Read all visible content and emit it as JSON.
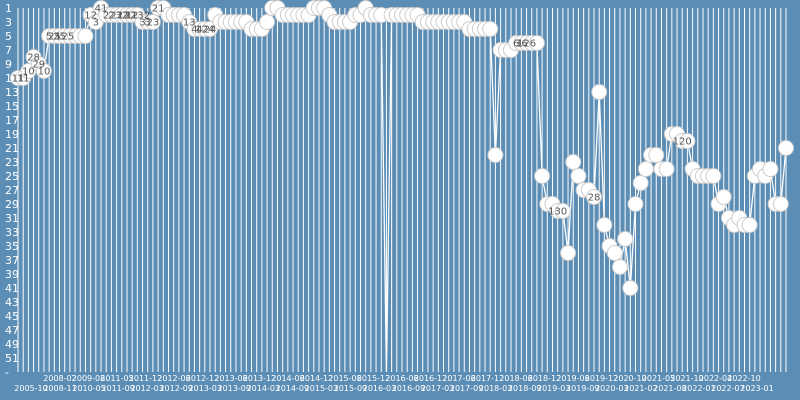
{
  "chart_data": {
    "type": "line",
    "title": "",
    "xlabel": "",
    "ylabel": "",
    "y_reversed": true,
    "ylim": [
      1,
      52
    ],
    "y_ticks": [
      1,
      3,
      5,
      7,
      9,
      11,
      13,
      15,
      17,
      19,
      21,
      23,
      25,
      27,
      29,
      31,
      33,
      35,
      37,
      39,
      41,
      43,
      45,
      47,
      49,
      51,
      "-"
    ],
    "x_ticks_bottom": [
      "2005-10",
      "2008-11",
      "2010-05",
      "2011-09",
      "2012-03",
      "2012-09",
      "2013-03",
      "2013-09",
      "2014-03",
      "2014-09",
      "2015-03",
      "2015-09",
      "2016-03",
      "2016-09",
      "2017-03",
      "2017-09",
      "2018-03",
      "2018-09",
      "2019-03",
      "2019-09",
      "2020-03",
      "2021-02",
      "2021-08",
      "2022-01",
      "2022-07",
      "2023-01"
    ],
    "x_ticks_top": [
      "2008-02",
      "2009-08",
      "2011-05",
      "2011-12",
      "2012-06",
      "2012-12",
      "2013-06",
      "2013-12",
      "2014-06",
      "2014-12",
      "2015-06",
      "2015-12",
      "2016-06",
      "2016-12",
      "2017-06",
      "2017-12",
      "2018-06",
      "2018-12",
      "2019-06",
      "2019-12",
      "2020-10",
      "2021-05",
      "2021-10",
      "2022-04",
      "2022-10"
    ],
    "series": [
      {
        "values": [
          11,
          11,
          10,
          8,
          9,
          10,
          5,
          5,
          5,
          5,
          5,
          5,
          5,
          5,
          2,
          3,
          1,
          2,
          2,
          2,
          2,
          2,
          2,
          2,
          3,
          3,
          3,
          1,
          1,
          2,
          2,
          2,
          2,
          3,
          4,
          4,
          4,
          4,
          2,
          3,
          3,
          3,
          3,
          3,
          3,
          4,
          4,
          4,
          3,
          1,
          1,
          2,
          2,
          2,
          2,
          2,
          2,
          1,
          1,
          1,
          2,
          3,
          3,
          3,
          3,
          2,
          2,
          1,
          2,
          2,
          2,
          53,
          2,
          2,
          2,
          2,
          2,
          2,
          3,
          3,
          3,
          3,
          3,
          3,
          3,
          3,
          3,
          4,
          4,
          4,
          4,
          4,
          22,
          7,
          7,
          7,
          6,
          6,
          6,
          6,
          6,
          25,
          29,
          29,
          30,
          30,
          36,
          23,
          25,
          27,
          27,
          28,
          13,
          32,
          35,
          36,
          38,
          34,
          41,
          29,
          26,
          24,
          22,
          22,
          24,
          24,
          19,
          19,
          20,
          20,
          24,
          25,
          25,
          25,
          25,
          29,
          28,
          31,
          32,
          31,
          32,
          32,
          25,
          24,
          25,
          24,
          29,
          29,
          21
        ],
        "shown_labels": [
          12,
          10,
          10,
          5,
          3,
          3,
          4,
          3,
          2,
          2,
          4,
          22,
          6,
          25,
          130,
          36,
          23,
          25,
          28,
          13,
          32,
          41,
          126,
          122,
          124,
          11,
          120,
          12,
          11,
          125,
          28,
          1132,
          24,
          29,
          21
        ]
      }
    ]
  }
}
